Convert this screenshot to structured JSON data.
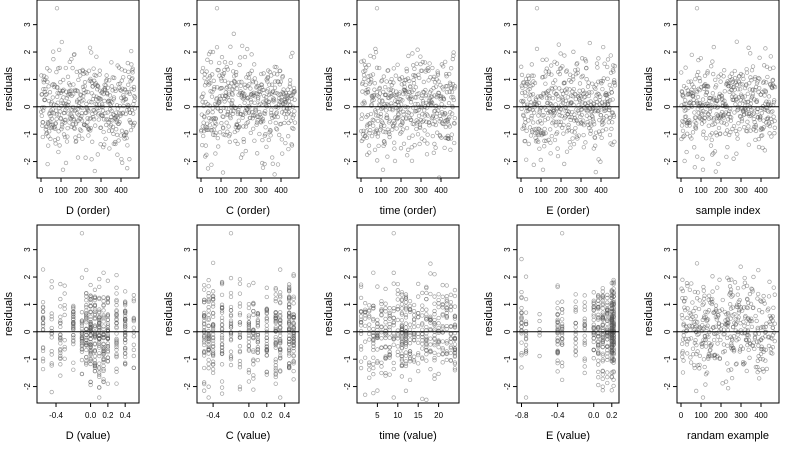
{
  "figure": {
    "panel_type": "scatter",
    "point_color": "#555555",
    "reference_line": "y = 0",
    "ylabel": "residuals",
    "y_ticks": [
      -2,
      -1,
      0,
      1,
      2,
      3
    ],
    "ylim": [
      -2.6,
      3.9
    ]
  },
  "chart_data": [
    {
      "type": "scatter",
      "xlabel": "D (order)",
      "ylabel": "residuals",
      "xlim": [
        -20,
        490
      ],
      "x_ticks": [
        0,
        100,
        200,
        300,
        400
      ],
      "x_tick_labels": [
        "0",
        "100",
        "200",
        "300",
        "400"
      ],
      "ylim": [
        -2.6,
        3.9
      ],
      "data_kind": "order",
      "seed": 11,
      "x_levels": [],
      "note_points": {
        "max": 3.6,
        "min": -2.3
      }
    },
    {
      "type": "scatter",
      "xlabel": "C (order)",
      "ylabel": "residuals",
      "xlim": [
        -20,
        490
      ],
      "x_ticks": [
        0,
        100,
        200,
        300,
        400
      ],
      "x_tick_labels": [
        "0",
        "100",
        "200",
        "300",
        "400"
      ],
      "ylim": [
        -2.6,
        3.9
      ],
      "data_kind": "order",
      "seed": 23,
      "x_levels": [],
      "note_points": {
        "max": 3.6,
        "min": -2.4
      }
    },
    {
      "type": "scatter",
      "xlabel": "time (order)",
      "ylabel": "residuals",
      "xlim": [
        -20,
        490
      ],
      "x_ticks": [
        0,
        100,
        200,
        300,
        400
      ],
      "x_tick_labels": [
        "0",
        "100",
        "200",
        "300",
        "400"
      ],
      "ylim": [
        -2.6,
        3.9
      ],
      "data_kind": "order",
      "seed": 37,
      "x_levels": [],
      "note_points": {
        "max": 3.6,
        "min": -2.3
      }
    },
    {
      "type": "scatter",
      "xlabel": "E (order)",
      "ylabel": "residuals",
      "xlim": [
        -20,
        490
      ],
      "x_ticks": [
        0,
        100,
        200,
        300,
        400
      ],
      "x_tick_labels": [
        "0",
        "100",
        "200",
        "300",
        "400"
      ],
      "ylim": [
        -2.6,
        3.9
      ],
      "data_kind": "order",
      "seed": 41,
      "x_levels": [],
      "note_points": {
        "max": 3.6,
        "min": -2.3
      }
    },
    {
      "type": "scatter",
      "xlabel": "sample index",
      "ylabel": "residuals",
      "xlim": [
        -20,
        490
      ],
      "x_ticks": [
        0,
        100,
        200,
        300,
        400
      ],
      "x_tick_labels": [
        "0",
        "100",
        "200",
        "300",
        "400"
      ],
      "ylim": [
        -2.6,
        3.9
      ],
      "data_kind": "order",
      "seed": 53,
      "x_levels": [],
      "note_points": {
        "max": 3.6,
        "min": -2.3
      }
    },
    {
      "type": "scatter",
      "xlabel": "D (value)",
      "ylabel": "residuals",
      "xlim": [
        -0.62,
        0.56
      ],
      "x_ticks": [
        -0.4,
        0.0,
        0.2,
        0.4
      ],
      "x_tick_labels": [
        "-0.4",
        "0.0",
        "0.2",
        "0.4"
      ],
      "ylim": [
        -2.6,
        3.9
      ],
      "data_kind": "levels",
      "seed": 61,
      "x_levels": [
        -0.55,
        -0.45,
        -0.35,
        -0.3,
        -0.2,
        -0.1,
        -0.05,
        0.0,
        0.05,
        0.1,
        0.15,
        0.2,
        0.3,
        0.4,
        0.5
      ],
      "level_weights": [
        2,
        2,
        2,
        1,
        3,
        4,
        4,
        5,
        4,
        5,
        4,
        4,
        3,
        3,
        1
      ],
      "note_points": {
        "max": 3.6,
        "min": -2.2
      }
    },
    {
      "type": "scatter",
      "xlabel": "C (value)",
      "ylabel": "residuals",
      "xlim": [
        -0.58,
        0.56
      ],
      "x_ticks": [
        -0.4,
        0.0,
        0.2,
        0.4
      ],
      "x_tick_labels": [
        "-0.4",
        "0.0",
        "0.2",
        "0.4"
      ],
      "ylim": [
        -2.6,
        3.9
      ],
      "data_kind": "levels",
      "seed": 71,
      "x_levels": [
        -0.5,
        -0.45,
        -0.4,
        -0.3,
        -0.2,
        -0.1,
        0.0,
        0.05,
        0.1,
        0.2,
        0.3,
        0.35,
        0.45,
        0.5
      ],
      "level_weights": [
        4,
        3,
        4,
        3,
        3,
        3,
        3,
        3,
        3,
        3,
        4,
        4,
        6,
        5
      ],
      "note_points": {
        "max": 3.6,
        "min": -2.4
      }
    },
    {
      "type": "scatter",
      "xlabel": "time (value)",
      "ylabel": "residuals",
      "xlim": [
        0,
        25
      ],
      "x_ticks": [
        5,
        10,
        15,
        20
      ],
      "x_tick_labels": [
        "5",
        "10",
        "15",
        "20"
      ],
      "ylim": [
        -2.6,
        3.9
      ],
      "data_kind": "levels",
      "seed": 83,
      "x_levels": [
        1,
        2,
        3,
        4,
        5,
        6,
        7,
        8,
        9,
        10,
        11,
        12,
        13,
        14,
        15,
        16,
        17,
        18,
        19,
        20,
        21,
        22,
        23,
        24
      ],
      "level_weights": [
        2,
        2,
        2,
        3,
        3,
        3,
        3,
        3,
        4,
        4,
        6,
        7,
        4,
        3,
        3,
        4,
        4,
        3,
        3,
        3,
        3,
        3,
        4,
        6
      ],
      "note_points": {
        "max": 3.6,
        "min": -2.3
      }
    },
    {
      "type": "scatter",
      "xlabel": "E (value)",
      "ylabel": "residuals",
      "xlim": [
        -0.85,
        0.28
      ],
      "x_ticks": [
        -0.8,
        -0.4,
        0.0,
        0.2
      ],
      "x_tick_labels": [
        "-0.8",
        "-0.4",
        "0.0",
        "0.2"
      ],
      "ylim": [
        -2.6,
        3.9
      ],
      "data_kind": "levels",
      "seed": 97,
      "x_levels": [
        -0.8,
        -0.75,
        -0.6,
        -0.4,
        -0.35,
        -0.2,
        -0.1,
        0.0,
        0.05,
        0.1,
        0.15,
        0.2,
        0.22
      ],
      "level_weights": [
        3,
        2,
        1,
        3,
        2,
        2,
        2,
        3,
        4,
        5,
        6,
        9,
        8
      ],
      "note_points": {
        "max": 3.6,
        "min": -2.4
      }
    },
    {
      "type": "scatter",
      "xlabel": "randam example",
      "ylabel": "residuals",
      "xlim": [
        -20,
        490
      ],
      "x_ticks": [
        0,
        100,
        200,
        300,
        400
      ],
      "x_tick_labels": [
        "0",
        "100",
        "200",
        "300",
        "400"
      ],
      "ylim": [
        -2.6,
        3.9
      ],
      "data_kind": "random",
      "seed": 109,
      "x_levels": [],
      "note_points": {
        "max": 2.5,
        "min": -2.4
      }
    }
  ]
}
